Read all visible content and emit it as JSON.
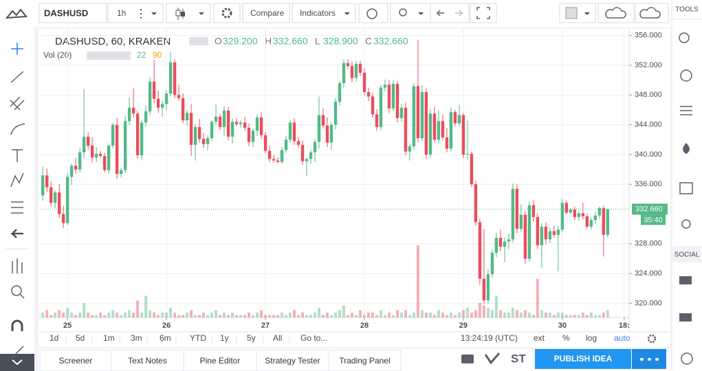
{
  "toolbar": {
    "symbol": "DASHUSD",
    "interval": "1h",
    "compare": "Compare",
    "indicators": "Indicators"
  },
  "sidebar": {
    "tools": "TOOLS",
    "social": "SOCIAL"
  },
  "chart_data": {
    "type": "candlestick",
    "title": "DASHUSD, 60, KRAKEN",
    "ohlc_labels": [
      "O",
      "H",
      "L",
      "C"
    ],
    "ohlc_values": [
      "329.200",
      "332.660",
      "328.900",
      "332.660"
    ],
    "volume_title": "Vol (20)",
    "volume_params": [
      "22",
      "90"
    ],
    "up_color": "#53b987",
    "down_color": "#eb4d5c",
    "grid": true,
    "xlim": [
      -0.7,
      142.2
    ],
    "xticks": [
      {
        "value": 6,
        "label": "25"
      },
      {
        "value": 30,
        "label": "26"
      },
      {
        "value": 54,
        "label": "27"
      },
      {
        "value": 78,
        "label": "28"
      },
      {
        "value": 102,
        "label": "29"
      },
      {
        "value": 126,
        "label": "30"
      },
      {
        "value": 141,
        "label": "18:"
      }
    ],
    "ylim": [
      318.1,
      356.9
    ],
    "yticks": [
      {
        "value": 320,
        "label": "320.000"
      },
      {
        "value": 324,
        "label": "324.000"
      },
      {
        "value": 328,
        "label": "328.000"
      },
      {
        "value": 336,
        "label": "336.000"
      },
      {
        "value": 340,
        "label": "340.000"
      },
      {
        "value": 344,
        "label": "344.000"
      },
      {
        "value": 348,
        "label": "348.000"
      },
      {
        "value": 352,
        "label": "352.000"
      },
      {
        "value": 356,
        "label": "356.000"
      }
    ],
    "last_price": {
      "value": 332.66,
      "label": "332.660"
    },
    "countdown": "35:40",
    "candles": [
      [
        334.5,
        338.4,
        333.8,
        337.2
      ],
      [
        337.2,
        338.1,
        335.0,
        335.6
      ],
      [
        335.6,
        336.4,
        333.0,
        333.5
      ],
      [
        333.5,
        335.2,
        332.8,
        334.9
      ],
      [
        334.9,
        336.0,
        331.5,
        332.0
      ],
      [
        332.0,
        333.1,
        330.1,
        330.8
      ],
      [
        330.8,
        337.5,
        330.5,
        337.0
      ],
      [
        337.0,
        338.8,
        335.9,
        338.5
      ],
      [
        338.5,
        339.5,
        337.4,
        338.0
      ],
      [
        338.0,
        340.9,
        337.6,
        340.3
      ],
      [
        340.3,
        348.8,
        339.5,
        342.4
      ],
      [
        342.4,
        343.0,
        340.6,
        341.2
      ],
      [
        341.2,
        342.3,
        338.9,
        339.6
      ],
      [
        339.6,
        341.0,
        339.0,
        340.1
      ],
      [
        340.1,
        340.5,
        339.6,
        339.8
      ],
      [
        339.8,
        340.2,
        337.6,
        337.9
      ],
      [
        337.9,
        341.5,
        337.4,
        341.2
      ],
      [
        341.2,
        344.3,
        340.8,
        344.0
      ],
      [
        344.0,
        344.9,
        336.7,
        337.4
      ],
      [
        337.4,
        338.2,
        336.9,
        337.9
      ],
      [
        337.9,
        345.2,
        337.5,
        344.5
      ],
      [
        344.5,
        347.7,
        344.0,
        346.3
      ],
      [
        346.3,
        348.9,
        345.0,
        345.5
      ],
      [
        345.5,
        345.9,
        339.4,
        339.9
      ],
      [
        339.9,
        344.6,
        339.3,
        344.3
      ],
      [
        344.3,
        346.6,
        343.8,
        345.8
      ],
      [
        345.8,
        350.4,
        345.3,
        349.8
      ],
      [
        349.8,
        352.7,
        346.9,
        347.5
      ],
      [
        347.5,
        348.6,
        345.6,
        346.3
      ],
      [
        346.3,
        347.2,
        345.1,
        346.8
      ],
      [
        346.8,
        348.7,
        346.0,
        348.2
      ],
      [
        348.2,
        353.8,
        347.8,
        352.4
      ],
      [
        352.4,
        352.8,
        347.6,
        348.0
      ],
      [
        348.0,
        349.4,
        347.2,
        347.6
      ],
      [
        347.6,
        348.2,
        344.2,
        344.6
      ],
      [
        344.6,
        346.0,
        343.9,
        345.6
      ],
      [
        345.6,
        346.8,
        339.8,
        341.3
      ],
      [
        341.3,
        344.1,
        339.2,
        343.7
      ],
      [
        343.7,
        344.8,
        341.6,
        342.1
      ],
      [
        342.1,
        342.9,
        340.9,
        341.4
      ],
      [
        341.4,
        342.6,
        340.6,
        342.2
      ],
      [
        342.2,
        344.6,
        341.8,
        344.4
      ],
      [
        344.4,
        346.8,
        343.9,
        345.1
      ],
      [
        345.1,
        345.5,
        343.3,
        343.7
      ],
      [
        343.7,
        346.5,
        342.5,
        345.9
      ],
      [
        345.9,
        346.4,
        341.9,
        342.4
      ],
      [
        342.4,
        344.8,
        341.5,
        344.4
      ],
      [
        344.4,
        344.9,
        343.8,
        344.1
      ],
      [
        344.1,
        344.6,
        343.6,
        344.3
      ],
      [
        344.3,
        345.1,
        343.2,
        343.6
      ],
      [
        343.6,
        344.2,
        341.1,
        341.7
      ],
      [
        341.7,
        343.5,
        341.0,
        343.2
      ],
      [
        343.2,
        345.4,
        342.5,
        345.0
      ],
      [
        345.0,
        345.7,
        342.1,
        342.6
      ],
      [
        342.6,
        343.0,
        340.2,
        340.5
      ],
      [
        340.5,
        341.2,
        339.0,
        339.4
      ],
      [
        339.4,
        339.9,
        338.9,
        339.2
      ],
      [
        339.2,
        339.6,
        338.8,
        339.0
      ],
      [
        339.0,
        341.0,
        338.7,
        340.6
      ],
      [
        340.6,
        342.5,
        340.2,
        342.0
      ],
      [
        342.0,
        344.6,
        341.6,
        344.3
      ],
      [
        344.3,
        344.9,
        341.3,
        341.8
      ],
      [
        341.8,
        342.3,
        340.9,
        341.3
      ],
      [
        341.3,
        341.9,
        338.6,
        339.1
      ],
      [
        339.1,
        339.6,
        337.1,
        339.4
      ],
      [
        339.4,
        340.6,
        338.7,
        340.3
      ],
      [
        340.3,
        342.1,
        339.0,
        341.7
      ],
      [
        341.7,
        347.8,
        340.8,
        345.3
      ],
      [
        345.3,
        346.2,
        343.5,
        343.9
      ],
      [
        343.9,
        345.0,
        341.0,
        341.6
      ],
      [
        341.6,
        344.4,
        340.6,
        344.0
      ],
      [
        344.0,
        347.6,
        343.4,
        347.1
      ],
      [
        347.1,
        349.9,
        346.6,
        349.6
      ],
      [
        349.6,
        352.8,
        349.0,
        352.3
      ],
      [
        352.3,
        352.8,
        351.5,
        351.9
      ],
      [
        351.9,
        352.5,
        349.7,
        350.3
      ],
      [
        350.3,
        352.6,
        349.8,
        352.2
      ],
      [
        352.2,
        352.6,
        350.5,
        351.0
      ],
      [
        351.0,
        351.6,
        348.0,
        348.4
      ],
      [
        348.4,
        349.0,
        347.2,
        347.8
      ],
      [
        347.8,
        348.3,
        345.0,
        345.4
      ],
      [
        345.4,
        346.1,
        343.2,
        343.7
      ],
      [
        343.7,
        349.4,
        343.3,
        349.0
      ],
      [
        349.0,
        350.1,
        348.5,
        349.4
      ],
      [
        349.4,
        350.0,
        345.6,
        346.2
      ],
      [
        346.2,
        350.0,
        345.8,
        349.5
      ],
      [
        349.5,
        349.9,
        344.3,
        344.9
      ],
      [
        344.9,
        346.8,
        344.4,
        346.3
      ],
      [
        346.3,
        347.0,
        339.9,
        340.4
      ],
      [
        340.4,
        341.5,
        339.2,
        341.1
      ],
      [
        341.1,
        349.6,
        340.6,
        349.2
      ],
      [
        349.2,
        355.4,
        341.6,
        342.2
      ],
      [
        342.2,
        349.3,
        341.8,
        348.4
      ],
      [
        348.4,
        348.9,
        339.4,
        340.0
      ],
      [
        340.0,
        346.1,
        339.6,
        345.5
      ],
      [
        345.5,
        346.4,
        341.6,
        342.0
      ],
      [
        342.0,
        346.0,
        341.5,
        344.5
      ],
      [
        344.5,
        345.3,
        341.9,
        342.3
      ],
      [
        342.3,
        343.6,
        340.3,
        340.8
      ],
      [
        340.8,
        346.3,
        340.4,
        345.7
      ],
      [
        345.7,
        346.0,
        343.8,
        344.2
      ],
      [
        344.2,
        346.7,
        343.8,
        345.3
      ],
      [
        345.3,
        345.6,
        339.5,
        340.0
      ],
      [
        340.0,
        344.6,
        339.3,
        340.1
      ],
      [
        340.1,
        340.4,
        335.6,
        336.0
      ],
      [
        336.0,
        336.5,
        330.4,
        330.9
      ],
      [
        330.9,
        331.4,
        322.5,
        323.3
      ],
      [
        323.3,
        330.0,
        319.9,
        320.4
      ],
      [
        320.4,
        324.6,
        319.9,
        323.9
      ],
      [
        323.9,
        327.2,
        323.4,
        326.8
      ],
      [
        326.8,
        329.5,
        326.2,
        328.8
      ],
      [
        328.8,
        329.9,
        327.0,
        327.6
      ],
      [
        327.6,
        328.8,
        325.5,
        328.3
      ],
      [
        328.3,
        329.4,
        327.3,
        328.6
      ],
      [
        328.6,
        336.1,
        328.2,
        335.4
      ],
      [
        335.4,
        336.0,
        329.4,
        330.0
      ],
      [
        330.0,
        333.3,
        329.6,
        331.9
      ],
      [
        331.9,
        332.4,
        325.3,
        326.0
      ],
      [
        326.0,
        333.7,
        325.6,
        333.2
      ],
      [
        333.2,
        333.9,
        331.0,
        331.6
      ],
      [
        331.6,
        332.1,
        327.3,
        327.8
      ],
      [
        327.8,
        330.8,
        324.8,
        330.3
      ],
      [
        330.3,
        330.9,
        327.9,
        328.6
      ],
      [
        328.6,
        330.2,
        328.1,
        329.7
      ],
      [
        329.7,
        330.4,
        328.8,
        329.2
      ],
      [
        329.2,
        330.4,
        324.3,
        329.9
      ],
      [
        329.9,
        334.0,
        329.5,
        333.5
      ],
      [
        333.5,
        333.8,
        331.9,
        332.2
      ],
      [
        332.2,
        332.8,
        332.0,
        332.6
      ],
      [
        332.6,
        333.0,
        331.2,
        331.6
      ],
      [
        331.6,
        332.4,
        331.1,
        332.1
      ],
      [
        332.1,
        333.5,
        331.3,
        331.7
      ],
      [
        331.7,
        332.0,
        330.0,
        330.3
      ],
      [
        330.3,
        331.5,
        329.9,
        331.2
      ],
      [
        331.2,
        332.3,
        330.7,
        331.8
      ],
      [
        331.8,
        333.0,
        331.4,
        332.8
      ],
      [
        332.8,
        333.1,
        326.3,
        329.2
      ],
      [
        329.2,
        332.66,
        328.9,
        332.66
      ]
    ],
    "volume": [
      2,
      3,
      1,
      2,
      3,
      2,
      4,
      2,
      1,
      2,
      6,
      2,
      1,
      1,
      2,
      1,
      2,
      3,
      2,
      1,
      2,
      3,
      2,
      7,
      2,
      9,
      3,
      2,
      1,
      2,
      2,
      4,
      2,
      1,
      1,
      2,
      3,
      1,
      1,
      2,
      1,
      2,
      3,
      1,
      2,
      1,
      2,
      1,
      1,
      1,
      2,
      1,
      2,
      3,
      1,
      1,
      1,
      1,
      2,
      1,
      2,
      3,
      1,
      2,
      1,
      1,
      2,
      4,
      1,
      2,
      1,
      2,
      3,
      5,
      1,
      2,
      1,
      3,
      1,
      2,
      2,
      1,
      3,
      1,
      2,
      1,
      3,
      2,
      3,
      1,
      2,
      30,
      3,
      2,
      2,
      1,
      3,
      2,
      1,
      2,
      1,
      2,
      3,
      4,
      2,
      3,
      6,
      5,
      4,
      3,
      9,
      3,
      2,
      2,
      4,
      3,
      2,
      3,
      2,
      1,
      16,
      3,
      2,
      2,
      1,
      2,
      2,
      1,
      1,
      1,
      1,
      2,
      1,
      2,
      1,
      1,
      2,
      3
    ]
  },
  "range_bar": {
    "ranges": [
      "1d",
      "5d",
      "1m",
      "3m",
      "6m",
      "YTD",
      "1y",
      "5y",
      "All"
    ],
    "goto": "Go to...",
    "clock": "13:24:19 (UTC)",
    "options": [
      "ext",
      "%",
      "log",
      "auto"
    ]
  },
  "bottom_tabs": {
    "tabs": [
      "Screener",
      "Text Notes",
      "Pine Editor",
      "Strategy Tester",
      "Trading Panel"
    ],
    "share": "ST",
    "publish": "PUBLISH IDEA"
  }
}
